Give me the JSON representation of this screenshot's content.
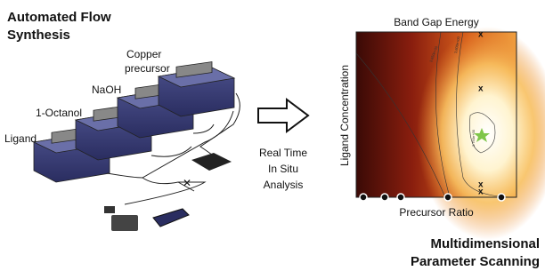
{
  "header": {
    "title_lines": [
      "Automated Flow",
      "Synthesis"
    ]
  },
  "reagents": {
    "copper": [
      "Copper",
      "precursor"
    ],
    "naoh": "NaOH",
    "octanol": "1-Octanol",
    "ligand": "Ligand"
  },
  "analysis": {
    "lines": [
      "Real Time",
      "In Situ",
      "Analysis"
    ]
  },
  "heatmap": {
    "title": "Band Gap Energy",
    "ylabel": "Ligand Concentration",
    "xlabel": "Precursor Ratio",
    "contour_labels": [
      "3.650e+00",
      "3.600e+00",
      "3.750e+00"
    ]
  },
  "footer": {
    "lines": [
      "Multidimensional",
      "Parameter Scanning"
    ]
  }
}
